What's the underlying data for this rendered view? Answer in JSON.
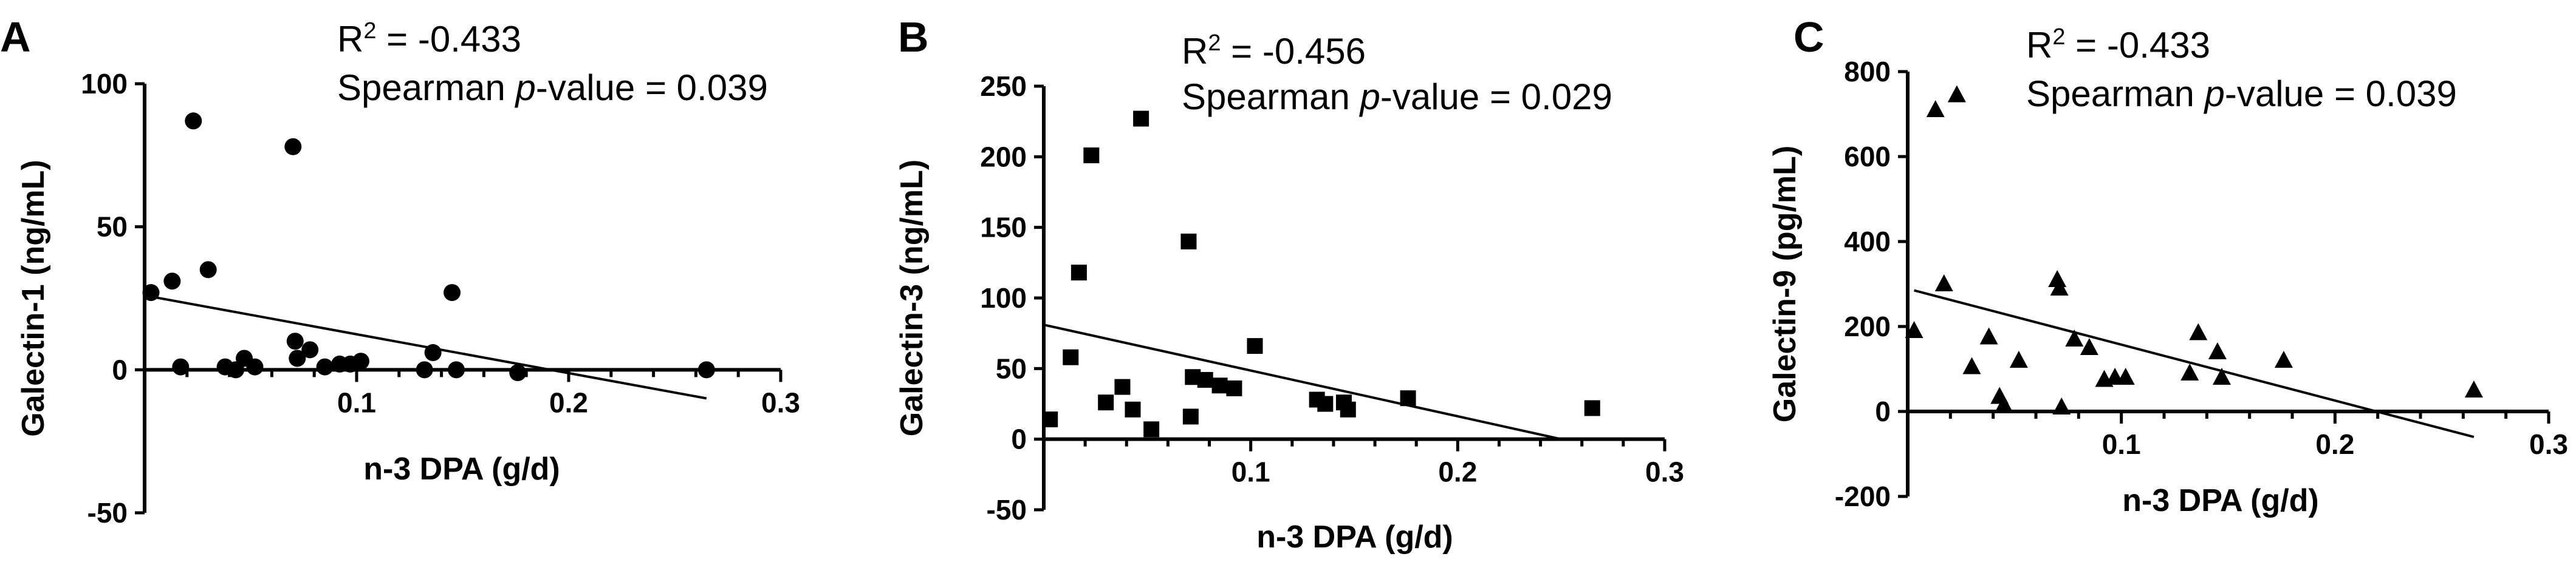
{
  "chart_data": [
    {
      "panel": "A",
      "type": "scatter",
      "marker": "circle",
      "annotation": {
        "r2_label": "R",
        "r2_sup": "2",
        "r2_value": " = -0.433",
        "p_prefix": "Spearman ",
        "p_italic": "p",
        "p_suffix": "-value = 0.039"
      },
      "xlabel": "n-3 DPA (g/d)",
      "ylabel": "Galectin-1 (ng/mL)",
      "xlim": [
        0,
        0.3
      ],
      "ylim": [
        -50,
        100
      ],
      "xticks": [
        0.1,
        0.2,
        0.3
      ],
      "xtick_labels": [
        "0.1",
        "0.2",
        "0.3"
      ],
      "xminor_step": 0.02,
      "yticks": [
        -50,
        0,
        50,
        100
      ],
      "ytick_labels": [
        "-50",
        "0",
        "50",
        "100"
      ],
      "fit_line": {
        "x": [
          0,
          0.265
        ],
        "y": [
          26,
          -10
        ]
      },
      "x": [
        0.003,
        0.013,
        0.017,
        0.023,
        0.03,
        0.038,
        0.043,
        0.047,
        0.052,
        0.07,
        0.071,
        0.072,
        0.078,
        0.085,
        0.092,
        0.097,
        0.102,
        0.132,
        0.136,
        0.145,
        0.147,
        0.176,
        0.265
      ],
      "y": [
        27,
        31,
        1,
        87,
        35,
        1,
        0,
        4,
        1,
        78,
        10,
        4,
        7,
        1,
        2,
        2,
        3,
        0,
        6,
        27,
        0,
        -1,
        0
      ]
    },
    {
      "panel": "B",
      "type": "scatter",
      "marker": "square",
      "annotation": {
        "r2_label": "R",
        "r2_sup": "2",
        "r2_value": " = -0.456",
        "p_prefix": "Spearman ",
        "p_italic": "p",
        "p_suffix": "-value = 0.029"
      },
      "xlabel": "n-3 DPA (g/d)",
      "ylabel": "Galectin-3 (ng/mL)",
      "xlim": [
        0,
        0.3
      ],
      "ylim": [
        -50,
        250
      ],
      "xticks": [
        0.1,
        0.2,
        0.3
      ],
      "xtick_labels": [
        "0.1",
        "0.2",
        "0.3"
      ],
      "xminor_step": 0.02,
      "yticks": [
        -50,
        0,
        50,
        100,
        150,
        200,
        250
      ],
      "ytick_labels": [
        "-50",
        "0",
        "50",
        "100",
        "150",
        "200",
        "250"
      ],
      "fit_line": {
        "x": [
          0,
          0.25
        ],
        "y": [
          81,
          0
        ]
      },
      "x": [
        0.003,
        0.013,
        0.017,
        0.023,
        0.03,
        0.038,
        0.043,
        0.047,
        0.052,
        0.07,
        0.071,
        0.072,
        0.078,
        0.085,
        0.092,
        0.102,
        0.132,
        0.136,
        0.145,
        0.147,
        0.176,
        0.265
      ],
      "y": [
        14,
        58,
        118,
        201,
        26,
        37,
        21,
        227,
        7,
        140,
        16,
        44,
        42,
        38,
        36,
        66,
        28,
        25,
        26,
        21,
        29,
        22
      ]
    },
    {
      "panel": "C",
      "type": "scatter",
      "marker": "triangle",
      "annotation": {
        "r2_label": "R",
        "r2_sup": "2",
        "r2_value": " = -0.433",
        "p_prefix": "Spearman ",
        "p_italic": "p",
        "p_suffix": "-value = 0.039"
      },
      "xlabel": "n-3 DPA (g/d)",
      "ylabel": "Galectin-9 (pg/mL)",
      "xlim": [
        0,
        0.3
      ],
      "ylim": [
        -200,
        800
      ],
      "xticks": [
        0.1,
        0.2,
        0.3
      ],
      "xtick_labels": [
        "0.1",
        "0.2",
        "0.3"
      ],
      "xminor_step": 0.02,
      "yticks": [
        -200,
        0,
        200,
        400,
        600,
        800
      ],
      "ytick_labels": [
        "-200",
        "0",
        "200",
        "400",
        "600",
        "800"
      ],
      "fit_line": {
        "x": [
          0.003,
          0.265
        ],
        "y": [
          285,
          -60
        ]
      },
      "x": [
        0.003,
        0.013,
        0.017,
        0.023,
        0.03,
        0.038,
        0.043,
        0.045,
        0.052,
        0.07,
        0.071,
        0.072,
        0.078,
        0.085,
        0.092,
        0.097,
        0.102,
        0.132,
        0.136,
        0.145,
        0.147,
        0.176,
        0.265
      ],
      "y": [
        190,
        710,
        300,
        745,
        105,
        175,
        35,
        15,
        120,
        310,
        290,
        10,
        170,
        150,
        75,
        80,
        80,
        90,
        185,
        140,
        80,
        120,
        50
      ]
    }
  ]
}
